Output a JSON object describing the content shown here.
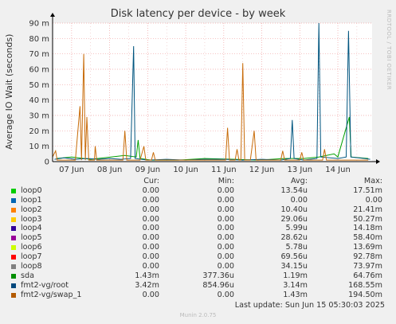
{
  "chart_data": {
    "type": "line",
    "title": "Disk latency per device - by week",
    "ylabel": "Average IO Wait (seconds)",
    "y_ticks": [
      "0",
      "10 m",
      "20 m",
      "30 m",
      "40 m",
      "50 m",
      "60 m",
      "70 m",
      "80 m",
      "90 m"
    ],
    "ylim": [
      0,
      90
    ],
    "y_unit": "ms",
    "x_ticks": [
      "07 Jun",
      "08 Jun",
      "09 Jun",
      "10 Jun",
      "11 Jun",
      "12 Jun",
      "13 Jun",
      "14 Jun"
    ],
    "xlim": [
      0,
      8.4
    ],
    "x_unit": "days since 06 Jun 00:00",
    "grid": true,
    "series": [
      {
        "name": "sda",
        "color": "#00a000",
        "points": [
          [
            0.1,
            2
          ],
          [
            0.5,
            3
          ],
          [
            1.0,
            1.5
          ],
          [
            1.9,
            4
          ],
          [
            2.2,
            3
          ],
          [
            2.25,
            14
          ],
          [
            2.3,
            2
          ],
          [
            2.6,
            1
          ],
          [
            3.3,
            1
          ],
          [
            4.0,
            2
          ],
          [
            4.8,
            1.5
          ],
          [
            5.4,
            1
          ],
          [
            6.1,
            2
          ],
          [
            6.6,
            2
          ],
          [
            7.0,
            3
          ],
          [
            7.4,
            5
          ],
          [
            7.5,
            3
          ],
          [
            7.8,
            29
          ],
          [
            7.85,
            3
          ],
          [
            8.3,
            2
          ]
        ]
      },
      {
        "name": "fmt2-vg/root",
        "color": "#00557f",
        "points": [
          [
            0.05,
            1.5
          ],
          [
            0.3,
            2.5
          ],
          [
            0.6,
            1.5
          ],
          [
            0.9,
            2
          ],
          [
            1.2,
            1.5
          ],
          [
            1.5,
            2
          ],
          [
            1.8,
            1.5
          ],
          [
            2.05,
            2
          ],
          [
            2.13,
            75
          ],
          [
            2.17,
            2
          ],
          [
            2.5,
            1
          ],
          [
            3.0,
            1.5
          ],
          [
            3.5,
            1
          ],
          [
            4.0,
            1.5
          ],
          [
            4.5,
            1.5
          ],
          [
            5.0,
            1
          ],
          [
            5.5,
            1.5
          ],
          [
            6.0,
            1
          ],
          [
            6.25,
            2
          ],
          [
            6.3,
            27
          ],
          [
            6.35,
            2
          ],
          [
            6.6,
            1
          ],
          [
            6.95,
            2
          ],
          [
            7.0,
            90
          ],
          [
            7.05,
            3
          ],
          [
            7.5,
            2
          ],
          [
            7.72,
            3
          ],
          [
            7.78,
            85
          ],
          [
            7.84,
            3
          ],
          [
            8.2,
            2
          ],
          [
            8.35,
            1.5
          ]
        ]
      },
      {
        "name": "fmt2-vg/swap_1",
        "color": "#c86c0a",
        "points": [
          [
            0.0,
            3
          ],
          [
            0.08,
            7
          ],
          [
            0.12,
            1
          ],
          [
            0.6,
            1
          ],
          [
            0.72,
            36
          ],
          [
            0.76,
            1
          ],
          [
            0.82,
            70
          ],
          [
            0.86,
            1
          ],
          [
            0.9,
            29
          ],
          [
            0.95,
            1
          ],
          [
            1.1,
            1
          ],
          [
            1.12,
            10
          ],
          [
            1.16,
            1
          ],
          [
            1.85,
            1
          ],
          [
            1.9,
            20
          ],
          [
            1.95,
            1
          ],
          [
            2.3,
            1
          ],
          [
            2.4,
            10
          ],
          [
            2.45,
            1
          ],
          [
            2.6,
            1
          ],
          [
            2.65,
            6
          ],
          [
            2.7,
            1
          ],
          [
            4.55,
            1
          ],
          [
            4.6,
            22
          ],
          [
            4.65,
            1
          ],
          [
            4.8,
            1
          ],
          [
            4.85,
            8
          ],
          [
            4.9,
            1
          ],
          [
            4.95,
            1
          ],
          [
            5.0,
            64
          ],
          [
            5.05,
            1
          ],
          [
            5.2,
            1
          ],
          [
            5.3,
            20
          ],
          [
            5.35,
            1
          ],
          [
            6.0,
            1
          ],
          [
            6.05,
            7
          ],
          [
            6.1,
            1
          ],
          [
            6.5,
            1
          ],
          [
            6.55,
            6
          ],
          [
            6.6,
            1
          ],
          [
            7.1,
            1
          ],
          [
            7.15,
            8
          ],
          [
            7.2,
            1
          ],
          [
            8.3,
            1
          ]
        ]
      }
    ]
  },
  "labels": {
    "side_text": "RRDTOOL / TOBI OETIKER",
    "legend_cols": [
      "Cur:",
      "Min:",
      "Avg:",
      "Max:"
    ],
    "last_update": "Last update: Sun Jun 15 05:30:03 2025",
    "munin_version": "Munin 2.0.75"
  },
  "legend": [
    {
      "name": "loop0",
      "color": "#00cc00",
      "cur": "0.00",
      "min": "0.00",
      "avg": "13.54u",
      "max": "17.51m"
    },
    {
      "name": "loop1",
      "color": "#0066b3",
      "cur": "0.00",
      "min": "0.00",
      "avg": "0.00",
      "max": "0.00"
    },
    {
      "name": "loop2",
      "color": "#ff8000",
      "cur": "0.00",
      "min": "0.00",
      "avg": "10.40u",
      "max": "21.41m"
    },
    {
      "name": "loop3",
      "color": "#ffcc00",
      "cur": "0.00",
      "min": "0.00",
      "avg": "29.06u",
      "max": "50.27m"
    },
    {
      "name": "loop4",
      "color": "#330099",
      "cur": "0.00",
      "min": "0.00",
      "avg": "5.99u",
      "max": "14.18m"
    },
    {
      "name": "loop5",
      "color": "#990099",
      "cur": "0.00",
      "min": "0.00",
      "avg": "28.62u",
      "max": "58.40m"
    },
    {
      "name": "loop6",
      "color": "#ccff00",
      "cur": "0.00",
      "min": "0.00",
      "avg": "5.78u",
      "max": "13.69m"
    },
    {
      "name": "loop7",
      "color": "#ff0000",
      "cur": "0.00",
      "min": "0.00",
      "avg": "69.56u",
      "max": "92.78m"
    },
    {
      "name": "loop8",
      "color": "#808080",
      "cur": "0.00",
      "min": "0.00",
      "avg": "34.15u",
      "max": "73.97m"
    },
    {
      "name": "sda",
      "color": "#008f00",
      "cur": "1.43m",
      "min": "377.36u",
      "avg": "1.19m",
      "max": "64.76m"
    },
    {
      "name": "fmt2-vg/root",
      "color": "#00487d",
      "cur": "3.42m",
      "min": "854.96u",
      "avg": "3.14m",
      "max": "168.55m"
    },
    {
      "name": "fmt2-vg/swap_1",
      "color": "#b35a00",
      "cur": "0.00",
      "min": "0.00",
      "avg": "1.43m",
      "max": "194.50m"
    }
  ]
}
